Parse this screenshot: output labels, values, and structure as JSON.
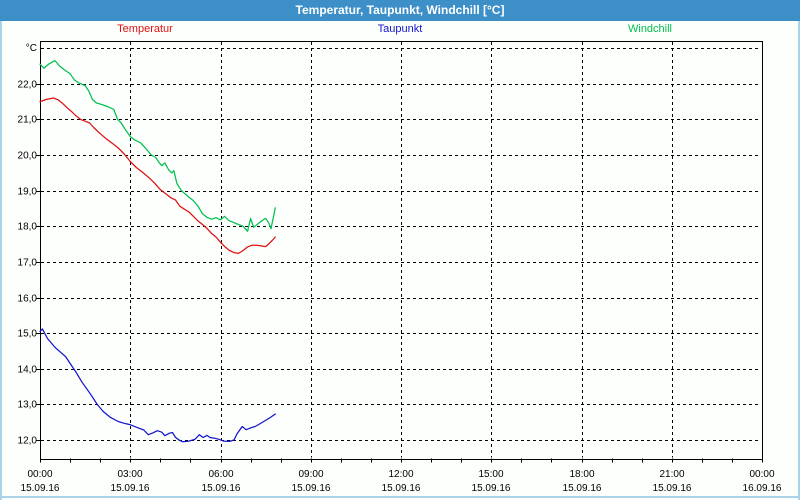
{
  "window": {
    "title": "Temperatur, Taupunkt, Windchill [°C]"
  },
  "legend": {
    "items": [
      {
        "label": "Temperatur",
        "color": "#dd1111"
      },
      {
        "label": "Taupunkt",
        "color": "#1414cc"
      },
      {
        "label": "Windchill",
        "color": "#00c050"
      }
    ]
  },
  "colors": {
    "titlebar": "#3c8fc7",
    "frame": "#abd4ea",
    "grid": "#000000",
    "background": "#fdfffd"
  },
  "chart_data": {
    "type": "line",
    "title": "Temperatur, Taupunkt, Windchill [°C]",
    "grid": true,
    "legend_position": "top",
    "x_axis": {
      "unit": "time",
      "range_hours": [
        0,
        24
      ],
      "major_tick_interval_h": 3,
      "minor_tick_interval_h": 1,
      "ticks": [
        {
          "hour": 0,
          "time": "00:00",
          "date": "15.09.16"
        },
        {
          "hour": 3,
          "time": "03:00",
          "date": "15.09.16"
        },
        {
          "hour": 6,
          "time": "06:00",
          "date": "15.09.16"
        },
        {
          "hour": 9,
          "time": "09:00",
          "date": "15.09.16"
        },
        {
          "hour": 12,
          "time": "12:00",
          "date": "15.09.16"
        },
        {
          "hour": 15,
          "time": "15:00",
          "date": "15.09.16"
        },
        {
          "hour": 18,
          "time": "18:00",
          "date": "15.09.16"
        },
        {
          "hour": 21,
          "time": "21:00",
          "date": "15.09.16"
        },
        {
          "hour": 24,
          "time": "00:00",
          "date": "16.09.16"
        }
      ]
    },
    "y_axis": {
      "unit_label": "°C",
      "range_shown": [
        12,
        23
      ],
      "gridline_values": [
        12,
        13,
        14,
        15,
        16,
        17,
        18,
        19,
        20,
        21,
        22,
        23
      ],
      "ticks": [
        {
          "value": 22,
          "label": "22,0"
        },
        {
          "value": 21,
          "label": "21,0"
        },
        {
          "value": 20,
          "label": "20,0"
        },
        {
          "value": 19,
          "label": "19,0"
        },
        {
          "value": 18,
          "label": "18,0"
        },
        {
          "value": 17,
          "label": "17,0"
        },
        {
          "value": 16,
          "label": "16,0"
        },
        {
          "value": 15,
          "label": "15,0"
        },
        {
          "value": 14,
          "label": "14,0"
        },
        {
          "value": 13,
          "label": "13,0"
        },
        {
          "value": 12,
          "label": "12,0"
        }
      ]
    },
    "series": [
      {
        "name": "Temperatur",
        "color": "#dd1111",
        "points": [
          [
            0,
            21.5
          ],
          [
            0.2,
            21.56
          ],
          [
            0.45,
            21.6
          ],
          [
            0.6,
            21.55
          ],
          [
            0.75,
            21.45
          ],
          [
            0.9,
            21.33
          ],
          [
            1.05,
            21.22
          ],
          [
            1.2,
            21.1
          ],
          [
            1.35,
            21.0
          ],
          [
            1.5,
            20.95
          ],
          [
            1.65,
            20.9
          ],
          [
            1.8,
            20.76
          ],
          [
            2.0,
            20.6
          ],
          [
            2.2,
            20.46
          ],
          [
            2.4,
            20.33
          ],
          [
            2.6,
            20.2
          ],
          [
            2.8,
            20.03
          ],
          [
            3.0,
            19.82
          ],
          [
            3.2,
            19.65
          ],
          [
            3.4,
            19.52
          ],
          [
            3.6,
            19.38
          ],
          [
            3.8,
            19.22
          ],
          [
            4.0,
            19.03
          ],
          [
            4.2,
            18.9
          ],
          [
            4.35,
            18.8
          ],
          [
            4.5,
            18.74
          ],
          [
            4.65,
            18.56
          ],
          [
            4.8,
            18.48
          ],
          [
            4.95,
            18.4
          ],
          [
            5.1,
            18.28
          ],
          [
            5.25,
            18.15
          ],
          [
            5.4,
            18.05
          ],
          [
            5.55,
            17.94
          ],
          [
            5.7,
            17.8
          ],
          [
            5.85,
            17.7
          ],
          [
            6.0,
            17.55
          ],
          [
            6.15,
            17.42
          ],
          [
            6.3,
            17.32
          ],
          [
            6.45,
            17.26
          ],
          [
            6.6,
            17.24
          ],
          [
            6.75,
            17.32
          ],
          [
            6.9,
            17.42
          ],
          [
            7.05,
            17.47
          ],
          [
            7.2,
            17.47
          ],
          [
            7.35,
            17.45
          ],
          [
            7.5,
            17.43
          ],
          [
            7.6,
            17.5
          ],
          [
            7.72,
            17.6
          ],
          [
            7.82,
            17.7
          ]
        ]
      },
      {
        "name": "Taupunkt",
        "color": "#1414cc",
        "points": [
          [
            0,
            15.05
          ],
          [
            0.08,
            15.12
          ],
          [
            0.25,
            14.85
          ],
          [
            0.5,
            14.6
          ],
          [
            0.7,
            14.45
          ],
          [
            0.85,
            14.34
          ],
          [
            1.0,
            14.15
          ],
          [
            1.2,
            13.9
          ],
          [
            1.4,
            13.62
          ],
          [
            1.67,
            13.3
          ],
          [
            1.9,
            13.0
          ],
          [
            2.1,
            12.8
          ],
          [
            2.35,
            12.63
          ],
          [
            2.6,
            12.52
          ],
          [
            2.8,
            12.47
          ],
          [
            3.0,
            12.43
          ],
          [
            3.2,
            12.36
          ],
          [
            3.45,
            12.28
          ],
          [
            3.6,
            12.15
          ],
          [
            3.75,
            12.2
          ],
          [
            3.9,
            12.26
          ],
          [
            4.05,
            12.22
          ],
          [
            4.15,
            12.12
          ],
          [
            4.3,
            12.19
          ],
          [
            4.4,
            12.21
          ],
          [
            4.5,
            12.08
          ],
          [
            4.62,
            12.0
          ],
          [
            4.75,
            11.95
          ],
          [
            4.95,
            11.97
          ],
          [
            5.15,
            12.02
          ],
          [
            5.3,
            12.15
          ],
          [
            5.42,
            12.07
          ],
          [
            5.55,
            12.13
          ],
          [
            5.65,
            12.07
          ],
          [
            5.8,
            12.05
          ],
          [
            5.95,
            12.02
          ],
          [
            6.1,
            11.97
          ],
          [
            6.3,
            11.96
          ],
          [
            6.45,
            12.0
          ],
          [
            6.55,
            12.17
          ],
          [
            6.72,
            12.38
          ],
          [
            6.85,
            12.29
          ],
          [
            7.0,
            12.34
          ],
          [
            7.15,
            12.38
          ],
          [
            7.3,
            12.45
          ],
          [
            7.5,
            12.55
          ],
          [
            7.65,
            12.63
          ],
          [
            7.82,
            12.73
          ]
        ]
      },
      {
        "name": "Windchill",
        "color": "#00c050",
        "points": [
          [
            0,
            22.55
          ],
          [
            0.13,
            22.44
          ],
          [
            0.3,
            22.56
          ],
          [
            0.5,
            22.65
          ],
          [
            0.65,
            22.5
          ],
          [
            0.8,
            22.4
          ],
          [
            1.0,
            22.28
          ],
          [
            1.15,
            22.1
          ],
          [
            1.3,
            22.02
          ],
          [
            1.5,
            21.95
          ],
          [
            1.62,
            21.8
          ],
          [
            1.75,
            21.55
          ],
          [
            1.88,
            21.46
          ],
          [
            2.05,
            21.42
          ],
          [
            2.25,
            21.36
          ],
          [
            2.45,
            21.28
          ],
          [
            2.58,
            21.0
          ],
          [
            2.7,
            20.9
          ],
          [
            2.85,
            20.7
          ],
          [
            3.0,
            20.52
          ],
          [
            3.15,
            20.42
          ],
          [
            3.35,
            20.34
          ],
          [
            3.5,
            20.2
          ],
          [
            3.7,
            20.0
          ],
          [
            3.85,
            19.93
          ],
          [
            3.95,
            19.8
          ],
          [
            4.05,
            19.7
          ],
          [
            4.15,
            19.78
          ],
          [
            4.28,
            19.58
          ],
          [
            4.38,
            19.5
          ],
          [
            4.45,
            19.56
          ],
          [
            4.55,
            19.2
          ],
          [
            4.7,
            19.0
          ],
          [
            4.95,
            18.82
          ],
          [
            5.1,
            18.72
          ],
          [
            5.25,
            18.57
          ],
          [
            5.4,
            18.35
          ],
          [
            5.55,
            18.25
          ],
          [
            5.7,
            18.2
          ],
          [
            5.85,
            18.24
          ],
          [
            6.0,
            18.18
          ],
          [
            6.13,
            18.28
          ],
          [
            6.28,
            18.16
          ],
          [
            6.45,
            18.1
          ],
          [
            6.6,
            18.05
          ],
          [
            6.75,
            18.0
          ],
          [
            6.9,
            17.86
          ],
          [
            7.0,
            18.22
          ],
          [
            7.1,
            17.97
          ],
          [
            7.25,
            18.07
          ],
          [
            7.4,
            18.17
          ],
          [
            7.5,
            18.22
          ],
          [
            7.6,
            18.1
          ],
          [
            7.68,
            17.93
          ],
          [
            7.82,
            18.52
          ]
        ]
      }
    ]
  }
}
